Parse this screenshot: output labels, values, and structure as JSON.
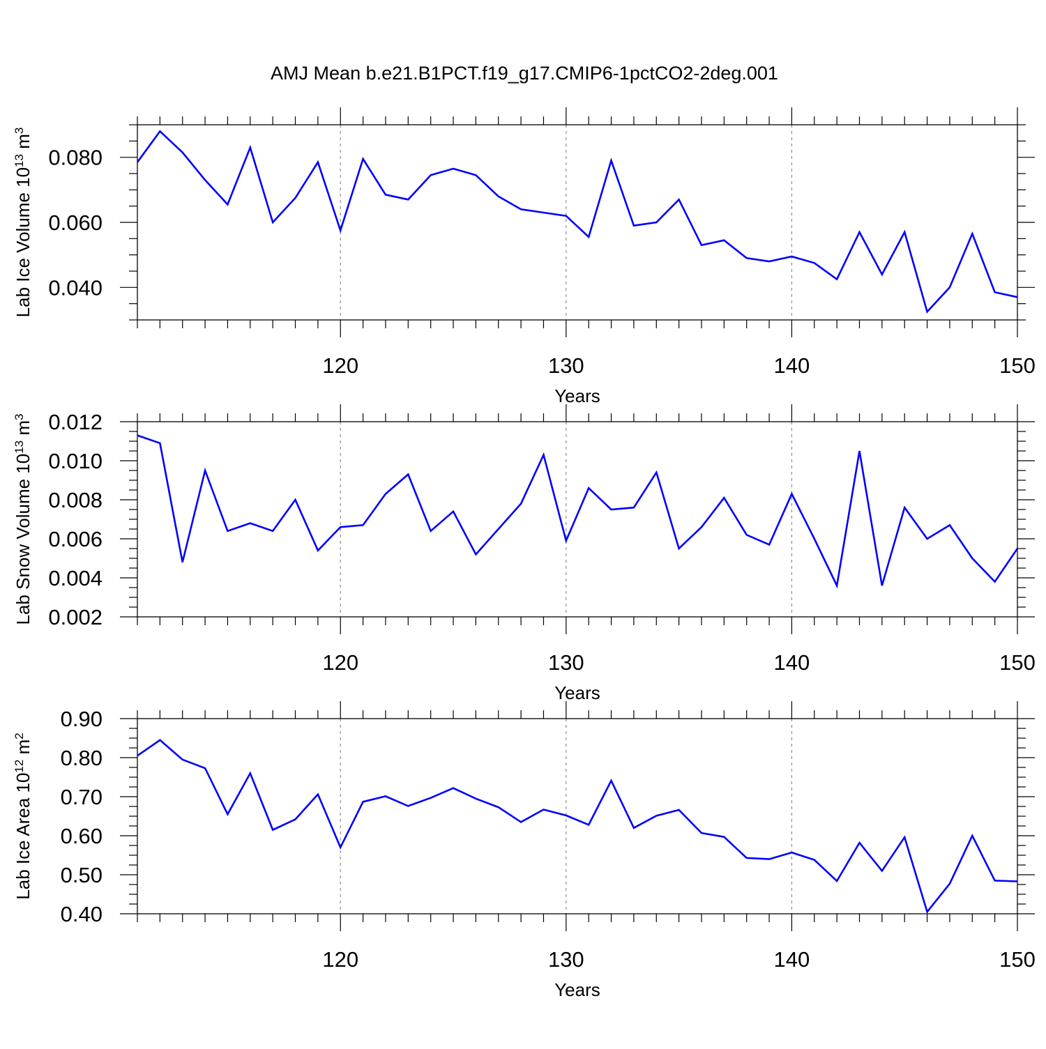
{
  "chart_data": [
    {
      "type": "line",
      "title": "AMJ Mean b.e21.B1PCT.f19_g17.CMIP6-1pctCO2-2deg.001",
      "ylabel": "Lab Ice Volume 10",
      "ylabel_exp": "13",
      "ylabel_unit": " m",
      "ylabel_unit_exp": "3",
      "xlabel": "Years",
      "xlim": [
        111,
        150
      ],
      "ylim": [
        0.03,
        0.09
      ],
      "y_ticks": [
        0.04,
        0.06,
        0.08
      ],
      "y_tick_labels": [
        "0.040",
        "0.060",
        "0.080"
      ],
      "y_minor_step": 0.005,
      "x_ticks": [
        120,
        130,
        140,
        150
      ],
      "x_tick_labels": [
        "120",
        "130",
        "140",
        "150"
      ],
      "grid": "vertical dashed at major x ticks",
      "color": "#0000ff",
      "series": [
        {
          "x": [
            111,
            112,
            113,
            114,
            115,
            116,
            117,
            118,
            119,
            120,
            121,
            122,
            123,
            124,
            125,
            126,
            127,
            128,
            129,
            130,
            131,
            132,
            133,
            134,
            135,
            136,
            137,
            138,
            139,
            140,
            141,
            142,
            143,
            144,
            145,
            146,
            147,
            148,
            149,
            150
          ],
          "values": [
            0.0785,
            0.088,
            0.0815,
            0.073,
            0.0655,
            0.083,
            0.06,
            0.0675,
            0.0785,
            0.0575,
            0.0795,
            0.0685,
            0.067,
            0.0745,
            0.0765,
            0.0745,
            0.068,
            0.064,
            0.063,
            0.062,
            0.0555,
            0.079,
            0.059,
            0.06,
            0.067,
            0.053,
            0.0545,
            0.049,
            0.048,
            0.0495,
            0.0475,
            0.0425,
            0.057,
            0.044,
            0.057,
            0.0325,
            0.04,
            0.0565,
            0.0385,
            0.037
          ]
        }
      ]
    },
    {
      "type": "line",
      "ylabel": "Lab Snow Volume 10",
      "ylabel_exp": "13",
      "ylabel_unit": " m",
      "ylabel_unit_exp": "3",
      "xlabel": "Years",
      "xlim": [
        111,
        150
      ],
      "ylim": [
        0.002,
        0.012
      ],
      "y_ticks": [
        0.002,
        0.004,
        0.006,
        0.008,
        0.01,
        0.012
      ],
      "y_tick_labels": [
        "0.002",
        "0.004",
        "0.006",
        "0.008",
        "0.010",
        "0.012"
      ],
      "y_minor_step": 0.0005,
      "x_ticks": [
        120,
        130,
        140,
        150
      ],
      "x_tick_labels": [
        "120",
        "130",
        "140",
        "150"
      ],
      "grid": "vertical dashed at major x ticks",
      "color": "#0000ff",
      "series": [
        {
          "x": [
            111,
            112,
            113,
            114,
            115,
            116,
            117,
            118,
            119,
            120,
            121,
            122,
            123,
            124,
            125,
            126,
            127,
            128,
            129,
            130,
            131,
            132,
            133,
            134,
            135,
            136,
            137,
            138,
            139,
            140,
            141,
            142,
            143,
            144,
            145,
            146,
            147,
            148,
            149,
            150
          ],
          "values": [
            0.0113,
            0.0109,
            0.0048,
            0.0095,
            0.0064,
            0.0068,
            0.0064,
            0.008,
            0.0054,
            0.0066,
            0.0067,
            0.0083,
            0.0093,
            0.0064,
            0.0074,
            0.0052,
            0.0065,
            0.0078,
            0.0103,
            0.0059,
            0.0086,
            0.0075,
            0.0076,
            0.0094,
            0.0055,
            0.0066,
            0.0081,
            0.0062,
            0.0057,
            0.0083,
            0.006,
            0.0036,
            0.0105,
            0.0036,
            0.0076,
            0.006,
            0.0067,
            0.005,
            0.0038,
            0.0055
          ]
        }
      ]
    },
    {
      "type": "line",
      "ylabel": "Lab Ice Area 10",
      "ylabel_exp": "12",
      "ylabel_unit": " m",
      "ylabel_unit_exp": "2",
      "xlabel": "Years",
      "xlim": [
        111,
        150
      ],
      "ylim": [
        0.4,
        0.9
      ],
      "y_ticks": [
        0.4,
        0.5,
        0.6,
        0.7,
        0.8,
        0.9
      ],
      "y_tick_labels": [
        "0.40",
        "0.50",
        "0.60",
        "0.70",
        "0.80",
        "0.90"
      ],
      "y_minor_step": 0.025,
      "x_ticks": [
        120,
        130,
        140,
        150
      ],
      "x_tick_labels": [
        "120",
        "130",
        "140",
        "150"
      ],
      "grid": "vertical dashed at major x ticks",
      "color": "#0000ff",
      "series": [
        {
          "x": [
            111,
            112,
            113,
            114,
            115,
            116,
            117,
            118,
            119,
            120,
            121,
            122,
            123,
            124,
            125,
            126,
            127,
            128,
            129,
            130,
            131,
            132,
            133,
            134,
            135,
            136,
            137,
            138,
            139,
            140,
            141,
            142,
            143,
            144,
            145,
            146,
            147,
            148,
            149,
            150
          ],
          "values": [
            0.805,
            0.845,
            0.795,
            0.773,
            0.655,
            0.76,
            0.615,
            0.642,
            0.706,
            0.57,
            0.687,
            0.701,
            0.676,
            0.697,
            0.722,
            0.695,
            0.673,
            0.635,
            0.667,
            0.652,
            0.628,
            0.741,
            0.62,
            0.651,
            0.666,
            0.607,
            0.597,
            0.543,
            0.54,
            0.557,
            0.538,
            0.484,
            0.582,
            0.51,
            0.596,
            0.405,
            0.477,
            0.6,
            0.485,
            0.483
          ]
        }
      ]
    }
  ]
}
